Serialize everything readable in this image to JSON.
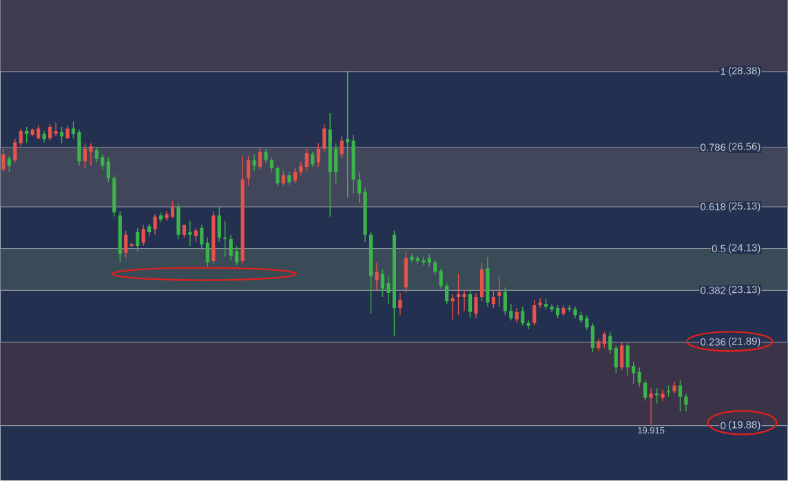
{
  "chart_data": {
    "type": "candlestick",
    "ylim": [
      -0.155,
      1.202
    ],
    "yticks": [
      1,
      0.786,
      0.618,
      0.5,
      0.382,
      0.236,
      0
    ],
    "grid": "y",
    "categories": [
      null,
      null,
      null,
      null,
      null,
      null,
      null,
      null,
      null,
      null,
      null,
      null,
      null,
      null,
      null,
      null,
      null,
      null,
      null,
      null,
      null,
      null,
      null,
      null,
      null,
      null,
      null,
      null,
      null,
      null,
      null,
      null,
      null,
      null,
      null,
      null,
      null,
      null,
      null,
      null,
      null,
      null,
      null,
      null,
      null,
      null,
      null,
      null,
      null,
      null,
      null,
      null,
      null,
      null,
      null,
      null,
      null,
      null,
      null,
      null,
      null,
      null,
      null,
      null,
      null,
      null,
      null,
      null,
      null,
      null,
      null,
      null,
      null,
      null,
      null,
      null,
      null,
      null,
      null,
      null,
      null,
      null,
      null,
      null,
      null,
      null,
      null,
      null,
      null,
      null,
      null,
      null,
      null,
      null,
      null,
      null,
      null,
      null,
      null,
      null,
      null,
      null,
      null,
      null,
      null,
      null,
      null,
      null,
      null,
      null,
      null,
      null,
      null,
      null,
      null,
      null,
      null,
      null
    ],
    "ohlc": [
      [
        0.723,
        0.782,
        0.716,
        0.766
      ],
      [
        0.754,
        0.761,
        0.716,
        0.734
      ],
      [
        0.75,
        0.809,
        0.743,
        0.8
      ],
      [
        0.797,
        0.839,
        0.789,
        0.832
      ],
      [
        0.832,
        0.844,
        0.797,
        0.824
      ],
      [
        0.821,
        0.839,
        0.817,
        0.836
      ],
      [
        0.812,
        0.848,
        0.809,
        0.839
      ],
      [
        0.824,
        0.832,
        0.8,
        0.809
      ],
      [
        0.812,
        0.851,
        0.805,
        0.844
      ],
      [
        0.824,
        0.856,
        0.817,
        0.832
      ],
      [
        0.829,
        0.844,
        0.797,
        0.817
      ],
      [
        0.812,
        0.848,
        0.809,
        0.839
      ],
      [
        0.839,
        0.859,
        0.812,
        0.824
      ],
      [
        0.829,
        0.836,
        0.734,
        0.746
      ],
      [
        0.746,
        0.797,
        0.726,
        0.782
      ],
      [
        0.773,
        0.797,
        0.734,
        0.789
      ],
      [
        0.778,
        0.785,
        0.743,
        0.754
      ],
      [
        0.758,
        0.766,
        0.723,
        0.734
      ],
      [
        0.746,
        0.758,
        0.687,
        0.699
      ],
      [
        0.699,
        0.707,
        0.59,
        0.602
      ],
      [
        0.594,
        0.606,
        0.461,
        0.485
      ],
      [
        0.488,
        0.551,
        0.473,
        0.539
      ],
      [
        0.507,
        0.516,
        0.504,
        0.512
      ],
      [
        0.546,
        0.558,
        0.492,
        0.507
      ],
      [
        0.516,
        0.567,
        0.507,
        0.555
      ],
      [
        0.563,
        0.57,
        0.536,
        0.546
      ],
      [
        0.555,
        0.597,
        0.539,
        0.59
      ],
      [
        0.594,
        0.602,
        0.575,
        0.582
      ],
      [
        0.586,
        0.606,
        0.579,
        0.597
      ],
      [
        0.59,
        0.633,
        0.586,
        0.618
      ],
      [
        0.618,
        0.626,
        0.527,
        0.539
      ],
      [
        0.539,
        0.567,
        0.531,
        0.567
      ],
      [
        0.546,
        0.578,
        0.507,
        0.539
      ],
      [
        0.536,
        0.558,
        0.519,
        0.551
      ],
      [
        0.558,
        0.567,
        0.496,
        0.512
      ],
      [
        0.516,
        0.531,
        0.449,
        0.461
      ],
      [
        0.465,
        0.606,
        0.457,
        0.594
      ],
      [
        0.594,
        0.618,
        0.519,
        0.531
      ],
      [
        0.531,
        0.578,
        0.477,
        0.527
      ],
      [
        0.527,
        0.539,
        0.468,
        0.48
      ],
      [
        0.492,
        0.507,
        0.453,
        0.461
      ],
      [
        0.465,
        0.761,
        0.457,
        0.695
      ],
      [
        0.699,
        0.761,
        0.677,
        0.75
      ],
      [
        0.75,
        0.766,
        0.719,
        0.734
      ],
      [
        0.731,
        0.785,
        0.723,
        0.773
      ],
      [
        0.773,
        0.782,
        0.743,
        0.75
      ],
      [
        0.75,
        0.758,
        0.716,
        0.727
      ],
      [
        0.727,
        0.734,
        0.677,
        0.684
      ],
      [
        0.684,
        0.719,
        0.677,
        0.707
      ],
      [
        0.707,
        0.716,
        0.68,
        0.687
      ],
      [
        0.692,
        0.727,
        0.684,
        0.716
      ],
      [
        0.716,
        0.746,
        0.707,
        0.734
      ],
      [
        0.731,
        0.782,
        0.719,
        0.77
      ],
      [
        0.766,
        0.773,
        0.731,
        0.738
      ],
      [
        0.743,
        0.797,
        0.731,
        0.782
      ],
      [
        0.782,
        0.851,
        0.773,
        0.839
      ],
      [
        0.836,
        0.883,
        0.59,
        0.716
      ],
      [
        0.782,
        0.797,
        0.684,
        0.716
      ],
      [
        0.766,
        0.817,
        0.754,
        0.805
      ],
      [
        0.809,
        1.0,
        0.645,
        0.8
      ],
      [
        0.805,
        0.821,
        0.656,
        0.695
      ],
      [
        0.695,
        0.716,
        0.629,
        0.656
      ],
      [
        0.66,
        0.672,
        0.519,
        0.539
      ],
      [
        0.539,
        0.546,
        0.316,
        0.422
      ],
      [
        0.41,
        0.461,
        0.383,
        0.434
      ],
      [
        0.429,
        0.441,
        0.363,
        0.387
      ],
      [
        0.402,
        0.422,
        0.343,
        0.375
      ],
      [
        0.539,
        0.551,
        0.253,
        0.332
      ],
      [
        0.332,
        0.375,
        0.312,
        0.355
      ],
      [
        0.39,
        0.492,
        0.375,
        0.473
      ],
      [
        0.477,
        0.485,
        0.461,
        0.468
      ],
      [
        0.473,
        0.48,
        0.457,
        0.465
      ],
      [
        0.468,
        0.477,
        0.453,
        0.461
      ],
      [
        0.473,
        0.485,
        0.449,
        0.461
      ],
      [
        0.461,
        0.468,
        0.425,
        0.434
      ],
      [
        0.437,
        0.444,
        0.387,
        0.395
      ],
      [
        0.395,
        0.402,
        0.343,
        0.351
      ],
      [
        0.351,
        0.371,
        0.3,
        0.36
      ],
      [
        0.363,
        0.429,
        0.312,
        0.371
      ],
      [
        0.363,
        0.383,
        0.324,
        0.371
      ],
      [
        0.371,
        0.383,
        0.304,
        0.321
      ],
      [
        0.316,
        0.375,
        0.304,
        0.363
      ],
      [
        0.363,
        0.461,
        0.351,
        0.441
      ],
      [
        0.444,
        0.477,
        0.336,
        0.348
      ],
      [
        0.343,
        0.383,
        0.332,
        0.363
      ],
      [
        0.366,
        0.422,
        0.336,
        0.378
      ],
      [
        0.378,
        0.39,
        0.312,
        0.324
      ],
      [
        0.324,
        0.343,
        0.297,
        0.304
      ],
      [
        0.3,
        0.332,
        0.289,
        0.321
      ],
      [
        0.324,
        0.336,
        0.282,
        0.289
      ],
      [
        0.289,
        0.297,
        0.273,
        0.282
      ],
      [
        0.289,
        0.355,
        0.282,
        0.34
      ],
      [
        0.34,
        0.36,
        0.332,
        0.348
      ],
      [
        0.343,
        0.36,
        0.328,
        0.336
      ],
      [
        0.336,
        0.343,
        0.321,
        0.328
      ],
      [
        0.332,
        0.34,
        0.304,
        0.312
      ],
      [
        0.316,
        0.34,
        0.309,
        0.332
      ],
      [
        0.332,
        0.34,
        0.321,
        0.328
      ],
      [
        0.328,
        0.336,
        0.304,
        0.312
      ],
      [
        0.312,
        0.321,
        0.289,
        0.297
      ],
      [
        0.304,
        0.312,
        0.27,
        0.277
      ],
      [
        0.282,
        0.289,
        0.207,
        0.219
      ],
      [
        0.219,
        0.246,
        0.211,
        0.238
      ],
      [
        0.231,
        0.265,
        0.219,
        0.258
      ],
      [
        0.253,
        0.265,
        0.203,
        0.214
      ],
      [
        0.219,
        0.226,
        0.148,
        0.164
      ],
      [
        0.164,
        0.234,
        0.157,
        0.226
      ],
      [
        0.226,
        0.234,
        0.141,
        0.164
      ],
      [
        0.168,
        0.18,
        0.118,
        0.148
      ],
      [
        0.152,
        0.164,
        0.109,
        0.121
      ],
      [
        0.121,
        0.129,
        0.07,
        0.079
      ],
      [
        0.079,
        0.106,
        0.004,
        0.09
      ],
      [
        0.09,
        0.106,
        0.062,
        0.086
      ],
      [
        0.079,
        0.102,
        0.07,
        0.09
      ],
      [
        0.097,
        0.113,
        0.082,
        0.094
      ],
      [
        0.097,
        0.125,
        0.09,
        0.113
      ],
      [
        0.113,
        0.129,
        0.04,
        0.082
      ],
      [
        0.082,
        0.09,
        0.04,
        0.059
      ]
    ],
    "colors": [
      "#e5534b",
      "#3cb44b",
      "#e5534b",
      "#e5534b",
      "#3cb44b",
      "#e5534b",
      "#e5534b",
      "#3cb44b",
      "#e5534b",
      "#e5534b",
      "#3cb44b",
      "#e5534b",
      "#3cb44b",
      "#3cb44b",
      "#e5534b",
      "#e5534b",
      "#3cb44b",
      "#3cb44b",
      "#3cb44b",
      "#3cb44b",
      "#3cb44b",
      "#e5534b",
      "#e5534b",
      "#3cb44b",
      "#e5534b",
      "#3cb44b",
      "#e5534b",
      "#3cb44b",
      "#e5534b",
      "#e5534b",
      "#3cb44b",
      "#e5534b",
      "#3cb44b",
      "#e5534b",
      "#3cb44b",
      "#3cb44b",
      "#e5534b",
      "#3cb44b",
      "#3cb44b",
      "#3cb44b",
      "#3cb44b",
      "#e5534b",
      "#e5534b",
      "#3cb44b",
      "#e5534b",
      "#3cb44b",
      "#3cb44b",
      "#3cb44b",
      "#e5534b",
      "#3cb44b",
      "#e5534b",
      "#e5534b",
      "#e5534b",
      "#3cb44b",
      "#e5534b",
      "#e5534b",
      "#3cb44b",
      "#3cb44b",
      "#e5534b",
      "#3cb44b",
      "#3cb44b",
      "#3cb44b",
      "#3cb44b",
      "#3cb44b",
      "#e5534b",
      "#3cb44b",
      "#3cb44b",
      "#3cb44b",
      "#e5534b",
      "#e5534b",
      "#3cb44b",
      "#3cb44b",
      "#3cb44b",
      "#3cb44b",
      "#3cb44b",
      "#3cb44b",
      "#3cb44b",
      "#e5534b",
      "#e5534b",
      "#e5534b",
      "#3cb44b",
      "#e5534b",
      "#e5534b",
      "#3cb44b",
      "#e5534b",
      "#e5534b",
      "#3cb44b",
      "#3cb44b",
      "#e5534b",
      "#3cb44b",
      "#3cb44b",
      "#e5534b",
      "#e5534b",
      "#3cb44b",
      "#3cb44b",
      "#3cb44b",
      "#e5534b",
      "#3cb44b",
      "#3cb44b",
      "#3cb44b",
      "#3cb44b",
      "#3cb44b",
      "#e5534b",
      "#e5534b",
      "#3cb44b",
      "#3cb44b",
      "#e5534b",
      "#3cb44b",
      "#3cb44b",
      "#3cb44b",
      "#3cb44b",
      "#e5534b",
      "#3cb44b",
      "#e5534b",
      "#3cb44b",
      "#e5534b",
      "#3cb44b",
      "#3cb44b"
    ],
    "tick_labels": "y",
    "bands": [
      {
        "axis": "y",
        "from": 1,
        "to": 1.202,
        "color": "#3e3b51"
      },
      {
        "axis": "y",
        "from": 0.618,
        "to": 0.786,
        "color": "#41465a"
      },
      {
        "axis": "y",
        "from": 0.382,
        "to": 0.5,
        "color": "#3a4b58"
      },
      {
        "axis": "y",
        "from": 0,
        "to": 0.236,
        "color": "#3b3347"
      }
    ],
    "annotations": [
      {
        "text": "(28.38)",
        "y": 1
      },
      {
        "text": "(26.56)",
        "y": 0.786
      },
      {
        "text": "(25.13)",
        "y": 0.618
      },
      {
        "text": "(24.13)",
        "y": 0.5
      },
      {
        "text": "(23.13)",
        "y": 0.382
      },
      {
        "text": "(21.89)",
        "y": 0.236
      },
      {
        "text": "(19.88)",
        "y": 0
      },
      {
        "text": "19.915",
        "y": 0.004
      }
    ]
  }
}
